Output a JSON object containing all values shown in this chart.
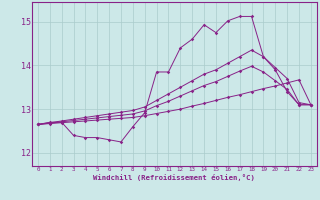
{
  "xlabel": "Windchill (Refroidissement éolien,°C)",
  "xlim": [
    -0.5,
    23.5
  ],
  "ylim": [
    11.7,
    15.45
  ],
  "xticks": [
    0,
    1,
    2,
    3,
    4,
    5,
    6,
    7,
    8,
    9,
    10,
    11,
    12,
    13,
    14,
    15,
    16,
    17,
    18,
    19,
    20,
    21,
    22,
    23
  ],
  "yticks": [
    12,
    13,
    14,
    15
  ],
  "bg_color": "#cce8e8",
  "grid_color": "#aacccc",
  "line_color": "#882288",
  "hours": [
    0,
    1,
    2,
    3,
    4,
    5,
    6,
    7,
    8,
    9,
    10,
    11,
    12,
    13,
    14,
    15,
    16,
    17,
    18,
    19,
    20,
    21,
    22,
    23
  ],
  "y_main": [
    12.65,
    12.7,
    12.7,
    12.4,
    12.35,
    12.35,
    12.3,
    12.25,
    12.6,
    12.92,
    13.85,
    13.85,
    14.4,
    14.6,
    14.93,
    14.75,
    15.02,
    15.12,
    15.12,
    14.2,
    13.9,
    13.4,
    13.1,
    13.1
  ],
  "y_upper": [
    12.65,
    12.69,
    12.73,
    12.77,
    12.81,
    12.85,
    12.89,
    12.93,
    12.97,
    13.05,
    13.2,
    13.35,
    13.5,
    13.65,
    13.8,
    13.9,
    14.05,
    14.2,
    14.35,
    14.2,
    13.95,
    13.7,
    13.15,
    13.1
  ],
  "y_mid": [
    12.65,
    12.68,
    12.71,
    12.74,
    12.77,
    12.8,
    12.83,
    12.86,
    12.89,
    12.96,
    13.08,
    13.18,
    13.3,
    13.42,
    13.54,
    13.63,
    13.75,
    13.87,
    13.98,
    13.85,
    13.65,
    13.45,
    13.1,
    13.1
  ],
  "y_lower": [
    12.65,
    12.67,
    12.69,
    12.71,
    12.73,
    12.75,
    12.77,
    12.79,
    12.81,
    12.85,
    12.9,
    12.95,
    13.0,
    13.07,
    13.13,
    13.2,
    13.27,
    13.33,
    13.4,
    13.47,
    13.53,
    13.6,
    13.67,
    13.1
  ]
}
